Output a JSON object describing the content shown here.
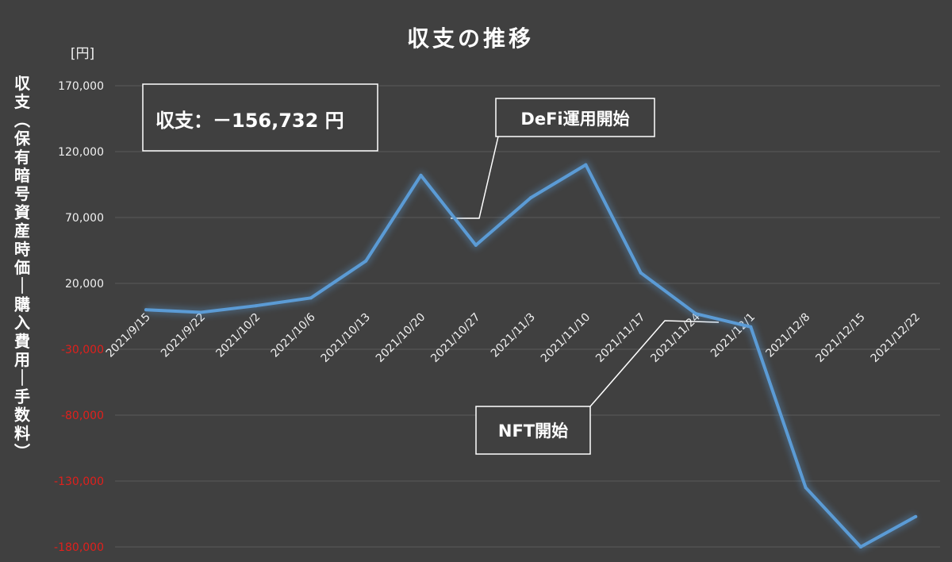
{
  "chart_data": {
    "type": "line",
    "title": "収支の推移",
    "unit_label": "[円]",
    "ylabel": "収支（保有暗号資産時価ー購入費用ー手数料）",
    "ylim": [
      -180000,
      170000
    ],
    "yticks": [
      170000,
      120000,
      70000,
      20000,
      -30000,
      -80000,
      -130000,
      -180000
    ],
    "ytick_labels": [
      "170,000",
      "120,000",
      "70,000",
      "20,000",
      "-30,000",
      "-80,000",
      "-130,000",
      "-180,000"
    ],
    "negative_tick_color": "#e0201c",
    "line_color": "#5b9bd5",
    "grid": true,
    "categories": [
      "2021/9/15",
      "2021/9/22",
      "2021/10/2",
      "2021/10/6",
      "2021/10/13",
      "2021/10/20",
      "2021/10/27",
      "2021/11/3",
      "2021/11/10",
      "2021/11/17",
      "2021/11/24",
      "2021/12/1",
      "2021/12/8",
      "2021/12/15",
      "2021/12/22"
    ],
    "values": [
      0,
      -2000,
      3000,
      9000,
      37000,
      102000,
      49000,
      85000,
      110000,
      28000,
      -3000,
      -13000,
      -135000,
      -180000,
      -157000
    ],
    "annotations": {
      "summary": "収支：－156,732 円",
      "defi": "DeFi運用開始",
      "nft": "NFT開始"
    }
  }
}
